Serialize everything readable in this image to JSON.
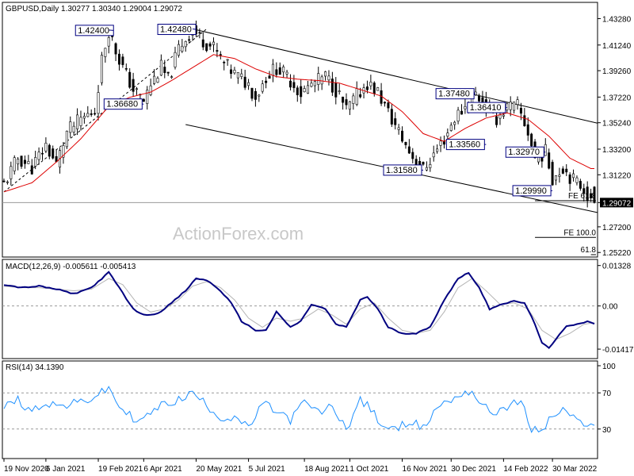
{
  "chart_data": [
    {
      "type": "candlestick",
      "header": {
        "symbol": "GBPUSD,Daily",
        "open": "1.30277",
        "high": "1.30340",
        "low": "1.29004",
        "close": "1.29072"
      },
      "watermark": "ActionForex.com",
      "y_ticks": [
        "1.43280",
        "1.41240",
        "1.39260",
        "1.37220",
        "1.35240",
        "1.33200",
        "1.31220",
        "1.29072",
        "1.27200",
        "1.25220"
      ],
      "y_tick_values": [
        1.4328,
        1.4124,
        1.3926,
        1.3722,
        1.3524,
        1.332,
        1.3122,
        1.29072,
        1.272,
        1.2522
      ],
      "ylim": [
        1.2505,
        1.4435
      ],
      "current_price": "1.29072",
      "current_value": 1.29072,
      "price_path": [
        [
          0,
          1.305
        ],
        [
          4,
          1.325
        ],
        [
          8,
          1.318
        ],
        [
          12,
          1.335
        ],
        [
          15,
          1.32
        ],
        [
          18,
          1.345
        ],
        [
          22,
          1.355
        ],
        [
          26,
          1.362
        ],
        [
          28,
          1.4005
        ],
        [
          30,
          1.424
        ],
        [
          32,
          1.408
        ],
        [
          34,
          1.395
        ],
        [
          37,
          1.378
        ],
        [
          40,
          1.369
        ],
        [
          42,
          1.382
        ],
        [
          45,
          1.395
        ],
        [
          47,
          1.385
        ],
        [
          50,
          1.41
        ],
        [
          54,
          1.4248
        ],
        [
          56,
          1.418
        ],
        [
          60,
          1.41
        ],
        [
          63,
          1.398
        ],
        [
          66,
          1.39
        ],
        [
          70,
          1.382
        ],
        [
          72,
          1.372
        ],
        [
          75,
          1.388
        ],
        [
          78,
          1.395
        ],
        [
          82,
          1.385
        ],
        [
          85,
          1.375
        ],
        [
          88,
          1.382
        ],
        [
          92,
          1.388
        ],
        [
          95,
          1.378
        ],
        [
          98,
          1.362
        ],
        [
          101,
          1.373
        ],
        [
          104,
          1.383
        ],
        [
          107,
          1.376
        ],
        [
          110,
          1.36
        ],
        [
          113,
          1.345
        ],
        [
          116,
          1.33
        ],
        [
          120,
          1.3158
        ],
        [
          123,
          1.328
        ],
        [
          126,
          1.34
        ],
        [
          129,
          1.356
        ],
        [
          132,
          1.365
        ],
        [
          135,
          1.3748
        ],
        [
          138,
          1.365
        ],
        [
          141,
          1.356
        ],
        [
          144,
          1.3641
        ],
        [
          147,
          1.365
        ],
        [
          150,
          1.345
        ],
        [
          152,
          1.325
        ],
        [
          155,
          1.3297
        ],
        [
          157,
          1.3099
        ],
        [
          160,
          1.318
        ],
        [
          163,
          1.308
        ],
        [
          166,
          1.302
        ],
        [
          168,
          1.29072
        ]
      ],
      "ma_path": [
        [
          0,
          1.299
        ],
        [
          8,
          1.306
        ],
        [
          15,
          1.322
        ],
        [
          22,
          1.34
        ],
        [
          30,
          1.365
        ],
        [
          36,
          1.372
        ],
        [
          42,
          1.376
        ],
        [
          48,
          1.385
        ],
        [
          54,
          1.395
        ],
        [
          60,
          1.405
        ],
        [
          66,
          1.402
        ],
        [
          72,
          1.394
        ],
        [
          78,
          1.388
        ],
        [
          84,
          1.386
        ],
        [
          90,
          1.385
        ],
        [
          96,
          1.383
        ],
        [
          102,
          1.378
        ],
        [
          108,
          1.373
        ],
        [
          114,
          1.361
        ],
        [
          120,
          1.344
        ],
        [
          126,
          1.338
        ],
        [
          132,
          1.348
        ],
        [
          138,
          1.356
        ],
        [
          144,
          1.36
        ],
        [
          150,
          1.355
        ],
        [
          156,
          1.342
        ],
        [
          162,
          1.325
        ],
        [
          168,
          1.317
        ]
      ],
      "dashed_trendline": [
        [
          0,
          1.299
        ],
        [
          58,
          1.4248
        ]
      ],
      "channel_upper": [
        [
          54,
          1.4248
        ],
        [
          170,
          1.352
        ]
      ],
      "channel_lower": [
        [
          52,
          1.351
        ],
        [
          170,
          1.283
        ]
      ],
      "callouts": [
        {
          "label": "1.42400",
          "index": 30,
          "value": 1.424
        },
        {
          "label": "1.42480",
          "index": 54,
          "value": 1.4248
        },
        {
          "label": "1.36680",
          "index": 40,
          "value": 1.3668
        },
        {
          "label": "1.37480",
          "index": 135,
          "value": 1.3748
        },
        {
          "label": "1.36410",
          "index": 144,
          "value": 1.3641
        },
        {
          "label": "1.33560",
          "index": 138,
          "value": 1.3356
        },
        {
          "label": "1.31580",
          "index": 120,
          "value": 1.3158
        },
        {
          "label": "1.32970",
          "index": 155,
          "value": 1.3297
        },
        {
          "label": "1.29990",
          "index": 157,
          "value": 1.2999
        }
      ],
      "fib_levels": [
        {
          "label": "FE 61.8",
          "value": 1.2922,
          "from_index": 152
        },
        {
          "label": "FE 100.0",
          "value": 1.2638,
          "from_index": 152
        },
        {
          "label": "61.8",
          "value": 1.2505,
          "from_index": 168
        }
      ]
    },
    {
      "type": "line",
      "title": "MACD(12,26,9) -0.005611 -0.005413",
      "y_ticks": [
        "0.01328",
        "0.00",
        "-0.014173"
      ],
      "y_tick_values": [
        0.01328,
        0.0,
        -0.014173
      ],
      "ylim": [
        -0.0165,
        0.0145
      ],
      "series": [
        {
          "name": "MACD",
          "color": "#000080",
          "points": [
            [
              0,
              0.007
            ],
            [
              5,
              0.006
            ],
            [
              10,
              0.0065
            ],
            [
              15,
              0.0055
            ],
            [
              20,
              0.004
            ],
            [
              25,
              0.006
            ],
            [
              30,
              0.011
            ],
            [
              33,
              0.006
            ],
            [
              37,
              -0.001
            ],
            [
              40,
              -0.003
            ],
            [
              44,
              -0.0025
            ],
            [
              48,
              0.001
            ],
            [
              52,
              0.005
            ],
            [
              55,
              0.009
            ],
            [
              58,
              0.0085
            ],
            [
              62,
              0.005
            ],
            [
              65,
              0.001
            ],
            [
              68,
              -0.005
            ],
            [
              72,
              -0.008
            ],
            [
              75,
              -0.008
            ],
            [
              78,
              -0.002
            ],
            [
              82,
              -0.007
            ],
            [
              85,
              -0.005
            ],
            [
              88,
              0.0005
            ],
            [
              92,
              -0.001
            ],
            [
              95,
              -0.006
            ],
            [
              98,
              -0.007
            ],
            [
              102,
              0.002
            ],
            [
              104,
              0.003
            ],
            [
              107,
              -0.001
            ],
            [
              110,
              -0.007
            ],
            [
              114,
              -0.009
            ],
            [
              118,
              -0.009
            ],
            [
              122,
              -0.007
            ],
            [
              126,
              0.002
            ],
            [
              130,
              0.009
            ],
            [
              133,
              0.011
            ],
            [
              136,
              0.006
            ],
            [
              139,
              -0.001
            ],
            [
              142,
              0.0005
            ],
            [
              146,
              0.0015
            ],
            [
              149,
              0.001
            ],
            [
              152,
              -0.006
            ],
            [
              154,
              -0.012
            ],
            [
              156,
              -0.014
            ],
            [
              158,
              -0.011
            ],
            [
              161,
              -0.0065
            ],
            [
              164,
              -0.006
            ],
            [
              167,
              -0.005
            ],
            [
              169,
              -0.006
            ]
          ]
        },
        {
          "name": "Signal",
          "color": "#b4b4b4",
          "points": [
            [
              0,
              0.0065
            ],
            [
              5,
              0.006
            ],
            [
              10,
              0.006
            ],
            [
              15,
              0.0055
            ],
            [
              20,
              0.005
            ],
            [
              25,
              0.0055
            ],
            [
              30,
              0.009
            ],
            [
              34,
              0.007
            ],
            [
              38,
              0.001
            ],
            [
              42,
              -0.002
            ],
            [
              46,
              -0.001
            ],
            [
              50,
              0.002
            ],
            [
              54,
              0.0065
            ],
            [
              58,
              0.008
            ],
            [
              62,
              0.006
            ],
            [
              66,
              0.002
            ],
            [
              70,
              -0.004
            ],
            [
              74,
              -0.007
            ],
            [
              78,
              -0.004
            ],
            [
              82,
              -0.005
            ],
            [
              86,
              -0.004
            ],
            [
              90,
              -0.001
            ],
            [
              94,
              -0.003
            ],
            [
              98,
              -0.006
            ],
            [
              102,
              -0.001
            ],
            [
              106,
              0.001
            ],
            [
              110,
              -0.004
            ],
            [
              114,
              -0.008
            ],
            [
              118,
              -0.009
            ],
            [
              122,
              -0.008
            ],
            [
              126,
              -0.002
            ],
            [
              130,
              0.006
            ],
            [
              134,
              0.009
            ],
            [
              138,
              0.005
            ],
            [
              142,
              0.0005
            ],
            [
              146,
              0.001
            ],
            [
              150,
              -0.001
            ],
            [
              154,
              -0.008
            ],
            [
              158,
              -0.011
            ],
            [
              162,
              -0.009
            ],
            [
              166,
              -0.006
            ],
            [
              169,
              -0.0055
            ]
          ]
        }
      ]
    },
    {
      "type": "line",
      "title": "RSI(14) 34.1390",
      "y_ticks": [
        "100",
        "70",
        "30"
      ],
      "y_tick_values": [
        100,
        70,
        30
      ],
      "ylim": [
        0,
        100
      ],
      "series": [
        {
          "name": "RSI",
          "color": "#1e90ff",
          "points": [
            [
              0,
              55
            ],
            [
              4,
              62
            ],
            [
              8,
              50
            ],
            [
              12,
              60
            ],
            [
              16,
              55
            ],
            [
              20,
              58
            ],
            [
              24,
              62
            ],
            [
              28,
              70
            ],
            [
              30,
              75
            ],
            [
              33,
              55
            ],
            [
              36,
              45
            ],
            [
              39,
              38
            ],
            [
              42,
              48
            ],
            [
              46,
              58
            ],
            [
              50,
              62
            ],
            [
              54,
              70
            ],
            [
              57,
              60
            ],
            [
              60,
              50
            ],
            [
              63,
              40
            ],
            [
              66,
              45
            ],
            [
              70,
              30
            ],
            [
              74,
              58
            ],
            [
              78,
              50
            ],
            [
              82,
              40
            ],
            [
              86,
              60
            ],
            [
              90,
              48
            ],
            [
              94,
              55
            ],
            [
              98,
              30
            ],
            [
              102,
              62
            ],
            [
              105,
              52
            ],
            [
              108,
              35
            ],
            [
              112,
              28
            ],
            [
              116,
              40
            ],
            [
              120,
              30
            ],
            [
              124,
              55
            ],
            [
              128,
              62
            ],
            [
              131,
              70
            ],
            [
              134,
              72
            ],
            [
              137,
              55
            ],
            [
              140,
              48
            ],
            [
              144,
              55
            ],
            [
              148,
              60
            ],
            [
              151,
              30
            ],
            [
              154,
              28
            ],
            [
              157,
              45
            ],
            [
              160,
              50
            ],
            [
              163,
              45
            ],
            [
              166,
              30
            ],
            [
              169,
              34.139
            ]
          ]
        }
      ]
    }
  ],
  "x_axis": {
    "labels": [
      "19 Nov 2020",
      "6 Jan 2021",
      "19 Feb 2021",
      "6 Apr 2021",
      "20 May 2021",
      "5 Jul 2021",
      "18 Aug 2021",
      "1 Oct 2021",
      "16 Nov 2021",
      "30 Dec 2021",
      "14 Feb 2022",
      "30 Mar 2022"
    ],
    "tick_index": [
      0,
      12,
      27,
      40,
      55,
      70,
      86,
      99,
      114,
      128,
      143,
      157
    ]
  }
}
